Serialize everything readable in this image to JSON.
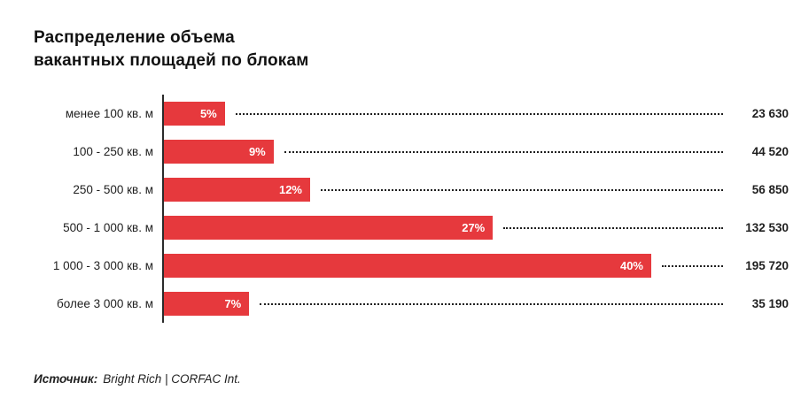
{
  "title": {
    "line1": "Распределение объема",
    "line2": "вакантных площадей по блокам"
  },
  "source": {
    "label": "Источник:",
    "text": "Bright Rich | CORFAC Int."
  },
  "chart_data": {
    "type": "bar",
    "orientation": "horizontal",
    "title": "Распределение объема вакантных площадей по блокам",
    "categories": [
      "менее 100 кв. м",
      "100 - 250 кв. м",
      "250 - 500 кв. м",
      "500 - 1 000 кв. м",
      "1 000 - 3 000 кв. м",
      "более 3 000 кв. м"
    ],
    "percent_values": [
      5,
      9,
      12,
      27,
      40,
      7
    ],
    "percent_labels": [
      "5%",
      "9%",
      "12%",
      "27%",
      "40%",
      "7%"
    ],
    "absolute_values": [
      23630,
      44520,
      56850,
      132530,
      195720,
      35190
    ],
    "absolute_labels": [
      "23 630",
      "44 520",
      "56 850",
      "132 530",
      "195 720",
      "35 190"
    ],
    "bar_color": "#e6393d",
    "axis_color": "#2b2b2b",
    "leader_style": "dotted",
    "xlim": [
      0,
      40
    ],
    "legend": "none",
    "grid": false
  }
}
